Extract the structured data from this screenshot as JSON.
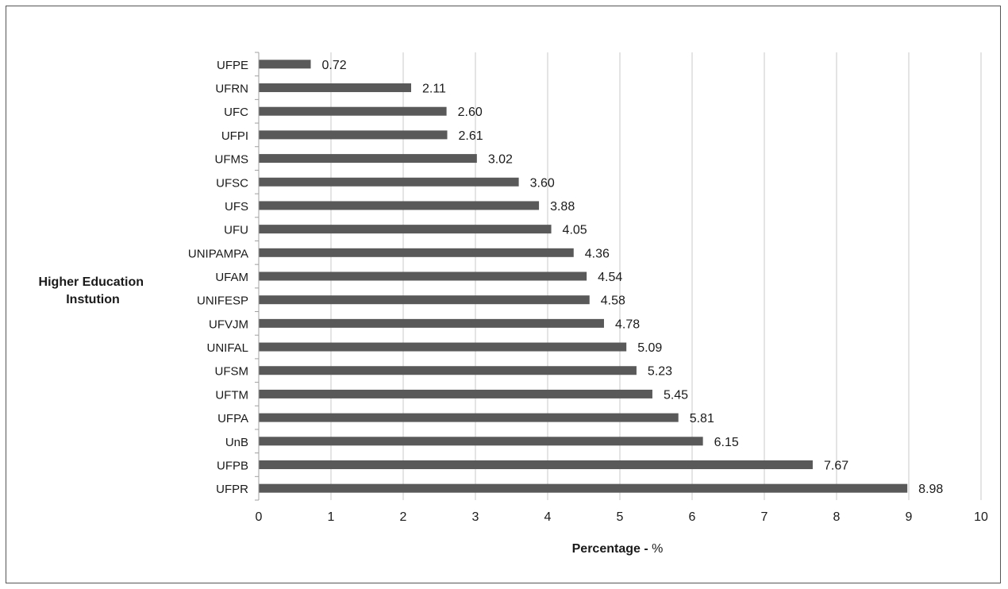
{
  "chart_data": {
    "type": "bar",
    "orientation": "horizontal",
    "categories": [
      "UFPE",
      "UFRN",
      "UFC",
      "UFPI",
      "UFMS",
      "UFSC",
      "UFS",
      "UFU",
      "UNIPAMPA",
      "UFAM",
      "UNIFESP",
      "UFVJM",
      "UNIFAL",
      "UFSM",
      "UFTM",
      "UFPA",
      "UnB",
      "UFPB",
      "UFPR"
    ],
    "values": [
      0.72,
      2.11,
      2.6,
      2.61,
      3.02,
      3.6,
      3.88,
      4.05,
      4.36,
      4.54,
      4.58,
      4.78,
      5.09,
      5.23,
      5.45,
      5.81,
      6.15,
      7.67,
      8.98
    ],
    "value_labels": [
      "0.72",
      "2.11",
      "2.60",
      "2.61",
      "3.02",
      "3.60",
      "3.88",
      "4.05",
      "4.36",
      "4.54",
      "4.58",
      "4.78",
      "5.09",
      "5.23",
      "5.45",
      "5.81",
      "6.15",
      "7.67",
      "8.98"
    ],
    "xlim": [
      0,
      10
    ],
    "xticks": [
      "0",
      "1",
      "2",
      "3",
      "4",
      "5",
      "6",
      "7",
      "8",
      "9",
      "10"
    ],
    "xlabel": "Percentage -",
    "xlabel_unit": "%",
    "ylabel_lines": [
      "Higher Education",
      "Instution"
    ],
    "grid": "vertical",
    "bar_color": "#595959",
    "grid_color": "#c8c8c8"
  }
}
